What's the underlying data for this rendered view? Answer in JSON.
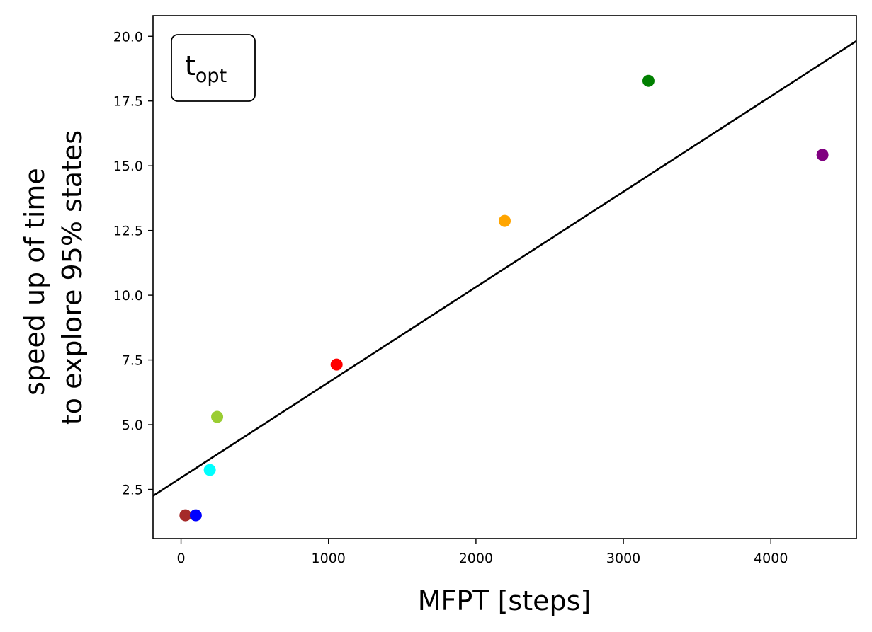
{
  "chart_data": {
    "type": "scatter",
    "title": "",
    "annotation": {
      "main": "t",
      "subscript": "opt"
    },
    "xlabel": "MFPT [steps]",
    "ylabel_lines": [
      "speed up of time",
      "to explore 95% states"
    ],
    "xlim": [
      -190,
      4580
    ],
    "ylim": [
      0.6,
      20.8
    ],
    "xticks": [
      0,
      1000,
      2000,
      3000,
      4000
    ],
    "yticks": [
      2.5,
      5.0,
      7.5,
      10.0,
      12.5,
      15.0,
      17.5,
      20.0
    ],
    "grid": false,
    "points": [
      {
        "x": 30,
        "y": 1.5,
        "color": "#a52a2a"
      },
      {
        "x": 100,
        "y": 1.5,
        "color": "#0000ff"
      },
      {
        "x": 195,
        "y": 3.25,
        "color": "#00ffff"
      },
      {
        "x": 245,
        "y": 5.3,
        "color": "#9acd32"
      },
      {
        "x": 1055,
        "y": 7.32,
        "color": "#ff0000"
      },
      {
        "x": 2195,
        "y": 12.87,
        "color": "#ffa500"
      },
      {
        "x": 3170,
        "y": 18.28,
        "color": "#008000"
      },
      {
        "x": 4350,
        "y": 15.42,
        "color": "#800080"
      }
    ],
    "fit_line": {
      "slope": 0.003683,
      "intercept": 2.95,
      "color": "#000000"
    }
  }
}
